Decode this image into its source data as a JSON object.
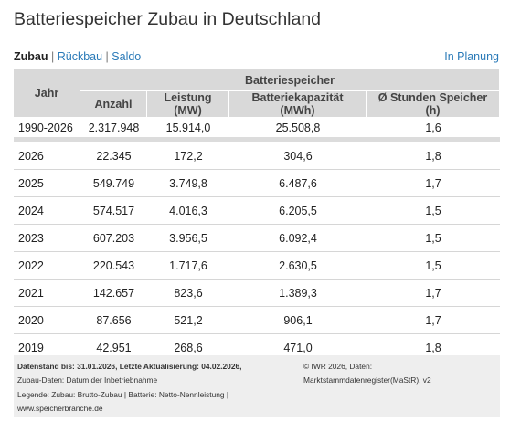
{
  "title": "Batteriespeicher Zubau in Deutschland",
  "nav": {
    "zubau": "Zubau",
    "rueckbau": "Rückbau",
    "saldo": "Saldo",
    "separator": "|",
    "planung": "In Planung"
  },
  "table": {
    "col_year": "Jahr",
    "group_header": "Batteriespeicher",
    "columns": [
      "Anzahl",
      "Leistung (MW)",
      "Batteriekapazität (MWh)",
      "Ø Stunden Speicher (h)"
    ],
    "total_row": {
      "year": "1990-2026",
      "count": "2.317.948",
      "power": "15.914,0",
      "capacity": "25.508,8",
      "hours": "1,6"
    },
    "rows": [
      {
        "year": "2026",
        "count": "22.345",
        "power": "172,2",
        "capacity": "304,6",
        "hours": "1,8"
      },
      {
        "year": "2025",
        "count": "549.749",
        "power": "3.749,8",
        "capacity": "6.487,6",
        "hours": "1,7"
      },
      {
        "year": "2024",
        "count": "574.517",
        "power": "4.016,3",
        "capacity": "6.205,5",
        "hours": "1,5"
      },
      {
        "year": "2023",
        "count": "607.203",
        "power": "3.956,5",
        "capacity": "6.092,4",
        "hours": "1,5"
      },
      {
        "year": "2022",
        "count": "220.543",
        "power": "1.717,6",
        "capacity": "2.630,5",
        "hours": "1,5"
      },
      {
        "year": "2021",
        "count": "142.657",
        "power": "823,6",
        "capacity": "1.389,3",
        "hours": "1,7"
      },
      {
        "year": "2020",
        "count": "87.656",
        "power": "521,2",
        "capacity": "906,1",
        "hours": "1,7"
      },
      {
        "year": "2019",
        "count": "42.951",
        "power": "268,6",
        "capacity": "471,0",
        "hours": "1,8"
      }
    ]
  },
  "footer": {
    "data_status": "Datenstand bis: 31.01.2026, Letzte Aktualisierung: 04.02.2026,",
    "zubau_note": "Zubau-Daten: Datum der Inbetriebnahme",
    "legend": "Legende: Zubau: Brutto-Zubau | Batterie: Netto-Nennleistung |",
    "website": "www.speicherbranche.de",
    "copyright": "© IWR 2026, Daten:",
    "source": "Marktstammdatenregister(MaStR), v2"
  }
}
